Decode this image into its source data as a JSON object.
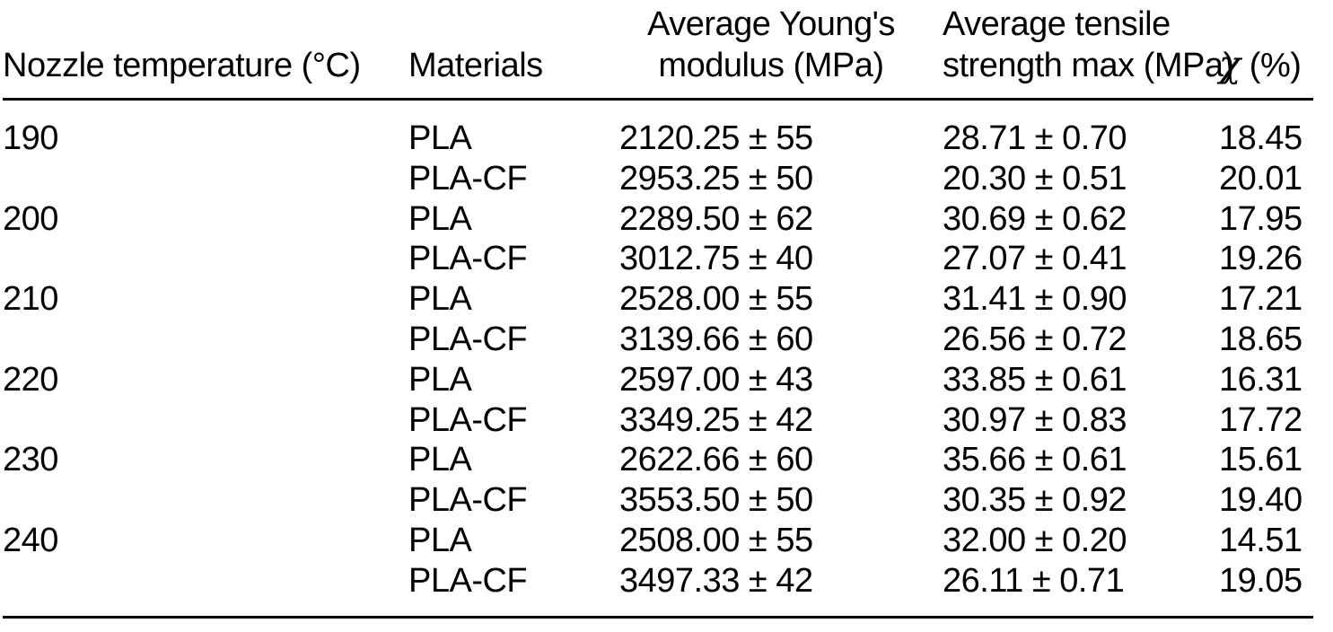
{
  "colors": {
    "background": "#ffffff",
    "text": "#000000",
    "rule": "#000000"
  },
  "header": {
    "nozzle_temperature": "Nozzle temperature (°C)",
    "materials": "Materials",
    "youngs_line1": "Average Young's",
    "youngs_line2": "modulus (MPa)",
    "tensile_line1": "Average tensile",
    "tensile_line2": "strength max (MPa)",
    "chi_symbol": "χ",
    "chi_suffix": " (%)"
  },
  "chart_data": {
    "type": "table",
    "columns": [
      "Nozzle temperature (°C)",
      "Materials",
      "Average Young's modulus (MPa)",
      "Average tensile strength max (MPa)",
      "χ (%)"
    ],
    "rows": [
      [
        "190",
        "PLA",
        "2120.25 ± 55",
        "28.71 ± 0.70",
        "18.45"
      ],
      [
        "",
        "PLA-CF",
        "2953.25 ± 50",
        "20.30 ± 0.51",
        "20.01"
      ],
      [
        "200",
        "PLA",
        "2289.50 ± 62",
        "30.69 ± 0.62",
        "17.95"
      ],
      [
        "",
        "PLA-CF",
        "3012.75 ± 40",
        "27.07 ± 0.41",
        "19.26"
      ],
      [
        "210",
        "PLA",
        "2528.00 ± 55",
        "31.41 ± 0.90",
        "17.21"
      ],
      [
        "",
        "PLA-CF",
        "3139.66 ± 60",
        "26.56 ± 0.72",
        "18.65"
      ],
      [
        "220",
        "PLA",
        "2597.00 ± 43",
        "33.85 ± 0.61",
        "16.31"
      ],
      [
        "",
        "PLA-CF",
        "3349.25 ± 42",
        "30.97 ± 0.83",
        "17.72"
      ],
      [
        "230",
        "PLA",
        "2622.66 ± 60",
        "35.66 ± 0.61",
        "15.61"
      ],
      [
        "",
        "PLA-CF",
        "3553.50 ± 50",
        "30.35 ± 0.92",
        "19.40"
      ],
      [
        "240",
        "PLA",
        "2508.00 ± 55",
        "32.00 ± 0.20",
        "14.51"
      ],
      [
        "",
        "PLA-CF",
        "3497.33 ± 42",
        "26.11 ± 0.71",
        "19.05"
      ]
    ]
  }
}
